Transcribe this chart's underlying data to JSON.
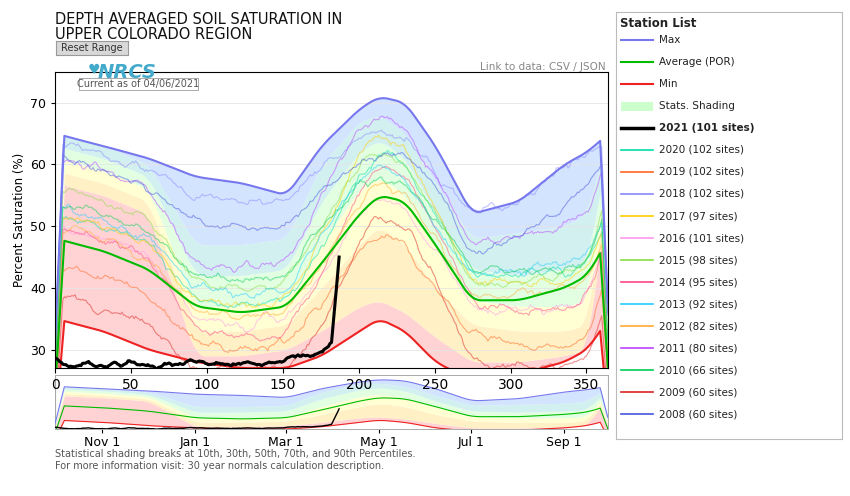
{
  "title_line1": "DEPTH AVERAGED SOIL SATURATION IN",
  "title_line2": "UPPER COLORADO REGION",
  "ylabel": "Percent Saturation (%)",
  "current_date": "Current as of 04/06/2021",
  "link_text": "Link to data: CSV / JSON",
  "station_list_title": "Station List",
  "x_tick_labels": [
    "Nov 1",
    "Jan 1",
    "Mar 1",
    "May 1",
    "Jul 1",
    "Sep 1"
  ],
  "x_tick_positions": [
    31,
    92,
    152,
    213,
    274,
    335
  ],
  "ylim_main": [
    27,
    75
  ],
  "yticks_main": [
    30,
    40,
    50,
    60,
    70
  ],
  "footnote_line1": "Statistical shading breaks at 10th, 30th, 50th, 70th, and 90th Percentiles.",
  "footnote_line2": "For more information visit: 30 year normals calculation description.",
  "legend_entries": [
    {
      "label": "Max",
      "color": "#7777ee",
      "lw": 1.5,
      "bold": false
    },
    {
      "label": "Average (POR)",
      "color": "#00bb00",
      "lw": 1.5,
      "bold": false
    },
    {
      "label": "Min",
      "color": "#ee2222",
      "lw": 1.5,
      "bold": false
    },
    {
      "label": "Stats. Shading",
      "color": "#ccffcc",
      "lw": 8,
      "bold": false
    },
    {
      "label": "2021 (101 sites)",
      "color": "#000000",
      "lw": 2.0,
      "bold": true
    },
    {
      "label": "2020 (102 sites)",
      "color": "#00ddaa",
      "lw": 1.2,
      "bold": false
    },
    {
      "label": "2019 (102 sites)",
      "color": "#ff6622",
      "lw": 1.2,
      "bold": false
    },
    {
      "label": "2018 (102 sites)",
      "color": "#8888ff",
      "lw": 1.2,
      "bold": false
    },
    {
      "label": "2017 (97 sites)",
      "color": "#ffcc00",
      "lw": 1.2,
      "bold": false
    },
    {
      "label": "2016 (101 sites)",
      "color": "#ff99ee",
      "lw": 1.2,
      "bold": false
    },
    {
      "label": "2015 (98 sites)",
      "color": "#88dd44",
      "lw": 1.2,
      "bold": false
    },
    {
      "label": "2014 (95 sites)",
      "color": "#ff4488",
      "lw": 1.2,
      "bold": false
    },
    {
      "label": "2013 (92 sites)",
      "color": "#22ccff",
      "lw": 1.2,
      "bold": false
    },
    {
      "label": "2012 (82 sites)",
      "color": "#ffaa33",
      "lw": 1.2,
      "bold": false
    },
    {
      "label": "2011 (80 sites)",
      "color": "#bb44ff",
      "lw": 1.2,
      "bold": false
    },
    {
      "label": "2010 (66 sites)",
      "color": "#00cc55",
      "lw": 1.2,
      "bold": false
    },
    {
      "label": "2009 (60 sites)",
      "color": "#dd2222",
      "lw": 1.2,
      "bold": false
    },
    {
      "label": "2008 (60 sites)",
      "color": "#4455dd",
      "lw": 1.2,
      "bold": false
    }
  ],
  "band_colors": [
    "#ffcccc",
    "#ffeebb",
    "#ffffcc",
    "#ddffdd",
    "#cceeee",
    "#cce0ff"
  ],
  "band_alpha": 0.85,
  "max_color": "#7777ee",
  "avg_color": "#00bb00",
  "min_color": "#ee2222",
  "current_color": "#000000"
}
